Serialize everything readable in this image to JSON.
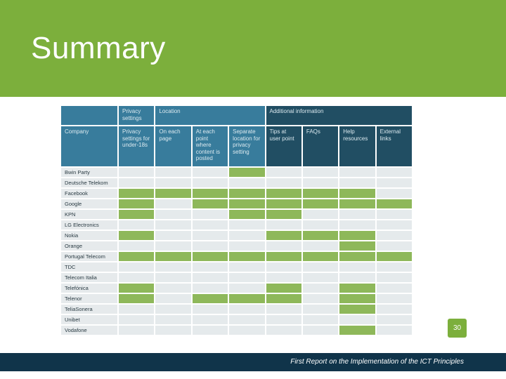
{
  "slide": {
    "title": "Summary",
    "page_number": "30",
    "footer": "First Report on the Implementation of the ICT Principles"
  },
  "colors": {
    "green": "#8eb85a",
    "blue": "#387c9c",
    "dark_blue": "#214e63",
    "footer": "#10344a"
  },
  "table": {
    "group_headers": {
      "privacy": "Privacy settings",
      "location": "Location",
      "additional": "Additional information"
    },
    "columns": [
      "Company",
      "Privacy settings for under-18s",
      "On each page",
      "At each point where content is posted",
      "Separate location for privacy setting",
      "Tips at user point",
      "FAQs",
      "Help resources",
      "External links"
    ],
    "rows": [
      {
        "company": "Bwin Party",
        "cells": [
          0,
          0,
          0,
          1,
          0,
          0,
          0,
          0
        ]
      },
      {
        "company": "Deutsche Telekom",
        "cells": [
          0,
          0,
          0,
          0,
          0,
          0,
          0,
          0
        ]
      },
      {
        "company": "Facebook",
        "cells": [
          1,
          1,
          1,
          1,
          1,
          1,
          1,
          0
        ]
      },
      {
        "company": "Google",
        "cells": [
          1,
          0,
          1,
          1,
          1,
          1,
          1,
          1
        ]
      },
      {
        "company": "KPN",
        "cells": [
          1,
          0,
          0,
          1,
          1,
          0,
          0,
          0
        ]
      },
      {
        "company": "LG Electronics",
        "cells": [
          0,
          0,
          0,
          0,
          0,
          0,
          0,
          0
        ]
      },
      {
        "company": "Nokia",
        "cells": [
          1,
          0,
          0,
          0,
          1,
          1,
          1,
          0
        ]
      },
      {
        "company": "Orange",
        "cells": [
          0,
          0,
          0,
          0,
          0,
          0,
          1,
          0
        ]
      },
      {
        "company": "Portugal Telecom",
        "cells": [
          1,
          1,
          1,
          1,
          1,
          1,
          1,
          1
        ]
      },
      {
        "company": "TDC",
        "cells": [
          0,
          0,
          0,
          0,
          0,
          0,
          0,
          0
        ]
      },
      {
        "company": "Telecom Italia",
        "cells": [
          0,
          0,
          0,
          0,
          0,
          0,
          0,
          0
        ]
      },
      {
        "company": "Telefónica",
        "cells": [
          1,
          0,
          0,
          0,
          1,
          0,
          1,
          0
        ]
      },
      {
        "company": "Telenor",
        "cells": [
          1,
          0,
          1,
          1,
          1,
          0,
          1,
          0
        ]
      },
      {
        "company": "TeliaSonera",
        "cells": [
          0,
          0,
          0,
          0,
          0,
          0,
          1,
          0
        ]
      },
      {
        "company": "Unibet",
        "cells": [
          0,
          0,
          0,
          0,
          0,
          0,
          0,
          0
        ]
      },
      {
        "company": "Vodafone",
        "cells": [
          0,
          0,
          0,
          0,
          0,
          0,
          1,
          0
        ]
      }
    ]
  }
}
